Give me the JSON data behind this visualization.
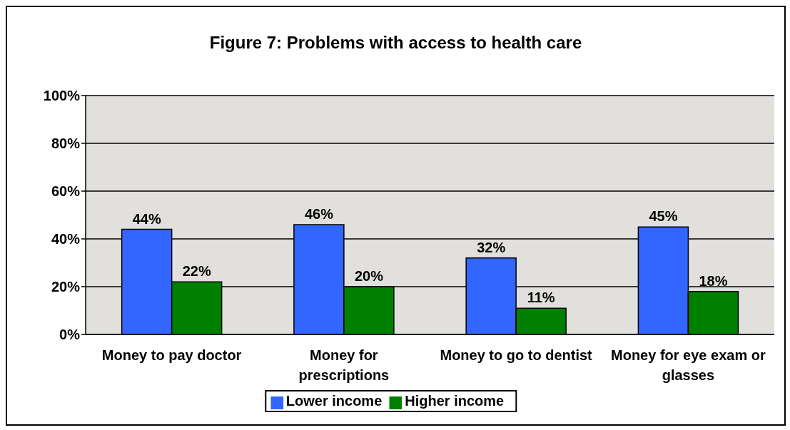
{
  "chart_data": {
    "type": "bar",
    "title": "Figure 7: Problems with access to health care",
    "categories": [
      "Money to pay doctor",
      "Money for prescriptions",
      "Money to go to dentist",
      "Money for eye exam or glasses"
    ],
    "series": [
      {
        "name": "Lower income",
        "color": "#3366ff",
        "values": [
          44,
          46,
          32,
          45
        ],
        "value_labels": [
          "44%",
          "46%",
          "32%",
          "45%"
        ]
      },
      {
        "name": "Higher income",
        "color": "#008000",
        "values": [
          22,
          20,
          11,
          18
        ],
        "value_labels": [
          "22%",
          "20%",
          "11%",
          "18%"
        ]
      }
    ],
    "ylim": [
      0,
      100
    ],
    "yticks": [
      {
        "value": 0,
        "label": "0%"
      },
      {
        "value": 20,
        "label": "20%"
      },
      {
        "value": 40,
        "label": "40%"
      },
      {
        "value": 60,
        "label": "60%"
      },
      {
        "value": 80,
        "label": "80%"
      },
      {
        "value": 100,
        "label": "100%"
      }
    ],
    "grid": "y",
    "legend": "bottom"
  }
}
